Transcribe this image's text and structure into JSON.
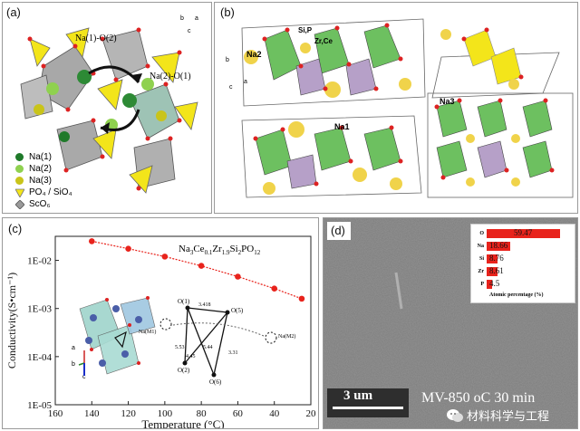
{
  "panel_a": {
    "label": "(a)",
    "site_labels": [
      "Na(1)-O(2)",
      "Na(2)-O(1)"
    ],
    "axes": [
      "b",
      "a",
      "c"
    ],
    "legend": [
      {
        "text": "Na(1)",
        "color": "#1f7a2a"
      },
      {
        "text": "Na(2)",
        "color": "#8fd14f"
      },
      {
        "text": "Na(3)",
        "color": "#c9c41a"
      },
      {
        "text": "PO₄ / SiO₄",
        "color": "#f3e51a"
      },
      {
        "text": "ScO₆",
        "color": "#9a9a9a"
      }
    ]
  },
  "panel_b": {
    "label": "(b)",
    "na_labels": [
      "Na1",
      "Na2",
      "Na3",
      "Si,P",
      "Zr,Ce"
    ],
    "axes": [
      "a",
      "b",
      "c"
    ]
  },
  "panel_c": {
    "label": "(c)",
    "formula": {
      "p1": "Na",
      "s1": "3",
      "p2": "Ce",
      "s2": "0.1",
      "p3": "Zr",
      "s3": "1.9",
      "p4": "Si",
      "s4": "2",
      "p5": "PO",
      "s5": "12"
    },
    "inset_labels": [
      "O(1)",
      "O(5)",
      "O(2)",
      "O(6)",
      "Na(M1)",
      "Na(M2)"
    ],
    "inset_distances": [
      "3.418",
      "5.53",
      "5.44",
      "4.45",
      "3.31"
    ],
    "axes": [
      "a",
      "b",
      "c"
    ]
  },
  "panel_d": {
    "label": "(d)",
    "scale_bar": "3 um",
    "caption": "MV-850 oC 30 min",
    "watermark": "材料科学与工程",
    "inset_title": "Atomic percentage (%)",
    "composition": [
      {
        "element": "O",
        "value": 59.47,
        "label": "59.47"
      },
      {
        "element": "Na",
        "value": 18.66,
        "label": "18.66"
      },
      {
        "element": "Si",
        "value": 8.76,
        "label": "8.76"
      },
      {
        "element": "Zr",
        "value": 8.61,
        "label": "8.61"
      },
      {
        "element": "P",
        "value": 4.5,
        "label": "4.5"
      }
    ],
    "colors": {
      "bar": "#e8231c"
    }
  },
  "chart_data": {
    "type": "scatter",
    "title": "",
    "xlabel": "Temperature (°C)",
    "ylabel": "Conductivity(S•cm⁻¹)",
    "xlim": [
      160,
      20
    ],
    "ylim_log10": [
      -5,
      -1.5
    ],
    "x_ticks": [
      "160",
      "140",
      "120",
      "100",
      "80",
      "60",
      "40",
      "20"
    ],
    "y_ticks": [
      "1E-05",
      "1E-04",
      "1E-03",
      "1E-02"
    ],
    "series": [
      {
        "x": [
          140,
          120,
          100,
          80,
          60,
          40,
          25
        ],
        "y": [
          0.025,
          0.0175,
          0.012,
          0.0077,
          0.0046,
          0.0026,
          0.0016
        ]
      }
    ],
    "colors": {
      "line": "#e8231c",
      "marker": "#e8231c"
    }
  }
}
